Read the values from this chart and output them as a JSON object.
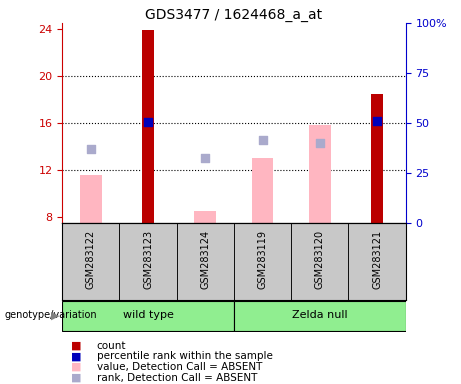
{
  "title": "GDS3477 / 1624468_a_at",
  "samples": [
    "GSM283122",
    "GSM283123",
    "GSM283124",
    "GSM283119",
    "GSM283120",
    "GSM283121"
  ],
  "ylim_left": [
    7.5,
    24.5
  ],
  "ylim_right": [
    0,
    100
  ],
  "yticks_left": [
    8,
    12,
    16,
    20,
    24
  ],
  "yticks_right": [
    0,
    25,
    50,
    75,
    100
  ],
  "yticklabels_right": [
    "0",
    "25",
    "50",
    "75",
    "100%"
  ],
  "red_bars": [
    null,
    23.9,
    null,
    null,
    null,
    18.5
  ],
  "blue_dots": [
    null,
    16.05,
    null,
    null,
    null,
    16.15
  ],
  "pink_bars": [
    11.6,
    null,
    8.5,
    13.0,
    15.8,
    null
  ],
  "purple_dots": [
    13.8,
    null,
    13.05,
    14.5,
    14.3,
    null
  ],
  "bar_bottom": 7.5,
  "red_color": "#BB0000",
  "blue_color": "#0000BB",
  "pink_color": "#FFB6C1",
  "purple_color": "#AAAACC",
  "bg_color": "#FFFFFF",
  "label_color_left": "#CC0000",
  "label_color_right": "#0000CC",
  "group_left_label": "genotype/variation",
  "groups": [
    {
      "label": "wild type",
      "start": 0,
      "end": 2
    },
    {
      "label": "Zelda null",
      "start": 3,
      "end": 5
    }
  ],
  "legend_items": [
    {
      "color": "#BB0000",
      "label": "count"
    },
    {
      "color": "#0000BB",
      "label": "percentile rank within the sample"
    },
    {
      "color": "#FFB6C1",
      "label": "value, Detection Call = ABSENT"
    },
    {
      "color": "#AAAACC",
      "label": "rank, Detection Call = ABSENT"
    }
  ]
}
